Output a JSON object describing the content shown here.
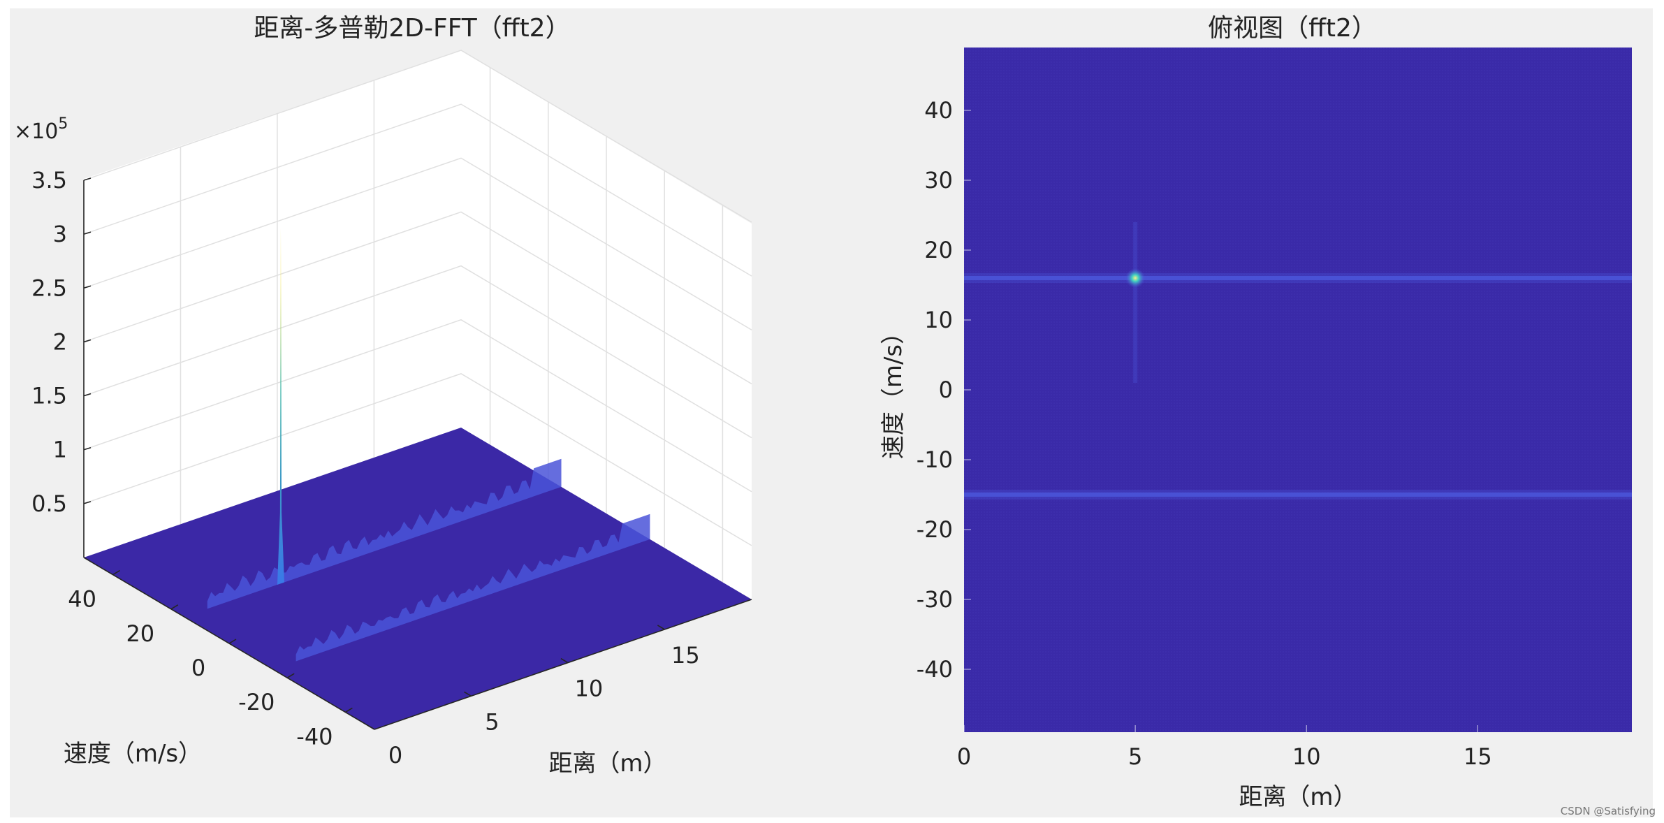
{
  "watermark": "CSDN @Satisfying",
  "colors": {
    "figure_bg": "#f0f0f0",
    "plot_bg": "#ffffff",
    "floor": "#3b28a6",
    "floor_dark": "#3322a0",
    "map_bg": "#3a2aa8",
    "band": "#4a54d8",
    "peak_top": "#f2e23c",
    "peak_mid": "#3fb6a8",
    "peak_low": "#3a78e8",
    "grid": "#e0e0e0",
    "axis": "#262626"
  },
  "chart_data": [
    {
      "type": "surface",
      "title": "距离-多普勒2D-FFT（fft2）",
      "xlabel": "距离（m）",
      "ylabel": "速度（m/s）",
      "zlabel": "",
      "z_exponent_label": "×10",
      "z_exponent_power": "5",
      "xlim": [
        0,
        19.5
      ],
      "ylim": [
        -50,
        50
      ],
      "zlim": [
        0,
        3.5
      ],
      "x_ticks": [
        0,
        5,
        10,
        15
      ],
      "y_ticks": [
        40,
        20,
        0,
        -20,
        -40
      ],
      "z_ticks": [
        0.5,
        1,
        1.5,
        2,
        2.5,
        3,
        3.5
      ],
      "z_tick_labels": [
        "0.5",
        "1",
        "1.5",
        "2",
        "2.5",
        "3",
        "3.5"
      ],
      "grid": true,
      "peak": {
        "range": 5,
        "velocity": 15.5,
        "magnitude": 3.3
      },
      "ridges": [
        {
          "velocity": 15.5,
          "magnitude": 0.2
        },
        {
          "velocity": -15,
          "magnitude": 0.18
        }
      ]
    },
    {
      "type": "heatmap",
      "title": "俯视图（fft2）",
      "xlabel": "距离（m）",
      "ylabel": "速度（m/s）",
      "xlim": [
        0,
        19.5
      ],
      "ylim": [
        -49,
        49
      ],
      "x_ticks": [
        0,
        5,
        10,
        15
      ],
      "y_ticks": [
        40,
        30,
        20,
        10,
        0,
        -10,
        -20,
        -30,
        -40
      ],
      "peak": {
        "range": 5,
        "velocity": 16
      },
      "bands": [
        {
          "velocity": 16
        },
        {
          "velocity": -15
        }
      ]
    }
  ]
}
